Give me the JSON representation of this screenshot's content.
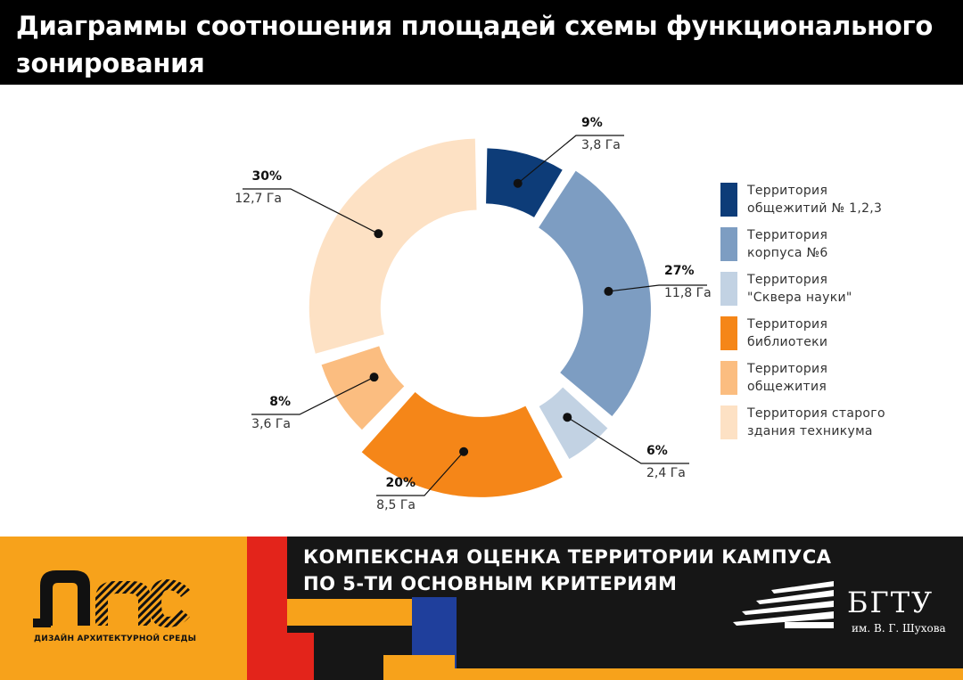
{
  "header": {
    "title": "Диаграммы соотношения площадей схемы функционального зонирования"
  },
  "chart_data": {
    "type": "pie",
    "title": "",
    "series": [
      {
        "name": "Территория общежитий № 1,2,3",
        "percent_label": "9%",
        "area_label": "3,8 Га",
        "value": 3.8,
        "color": "#0d3c78"
      },
      {
        "name": "Территория корпуса №6",
        "percent_label": "27%",
        "area_label": "11,8 Га",
        "value": 11.8,
        "color": "#7d9dc2"
      },
      {
        "name": "Территория \"Сквера науки\"",
        "percent_label": "6%",
        "area_label": "2,4 Га",
        "value": 2.4,
        "color": "#c2d2e3"
      },
      {
        "name": "Территория библиотеки",
        "percent_label": "20%",
        "area_label": "8,5 Га",
        "value": 8.5,
        "color": "#f58618"
      },
      {
        "name": "Территория общежития",
        "percent_label": "8%",
        "area_label": "3,6 Га",
        "value": 3.6,
        "color": "#fbbd80"
      },
      {
        "name": "Территория старого здания техникума",
        "percent_label": "30%",
        "area_label": "12,7 Га",
        "value": 12.7,
        "color": "#fde1c4"
      }
    ]
  },
  "legend": [
    {
      "line1": "Территория",
      "line2": "общежитий № 1,2,3",
      "color": "#0d3c78"
    },
    {
      "line1": "Территория",
      "line2": "корпуса №6",
      "color": "#7d9dc2"
    },
    {
      "line1": "Территория",
      "line2": "\"Сквера науки\"",
      "color": "#c2d2e3"
    },
    {
      "line1": "Территория",
      "line2": "библиотеки",
      "color": "#f58618"
    },
    {
      "line1": "Территория",
      "line2": "общежития",
      "color": "#fbbd80"
    },
    {
      "line1": "Территория старого",
      "line2": "здания техникума",
      "color": "#fde1c4"
    }
  ],
  "footer": {
    "slogan_line1": "КОМПЕКСНАЯ ОЦЕНКА ТЕРРИТОРИИ КАМПУСА",
    "slogan_line2": "ПО 5-ТИ ОСНОВНЫМ КРИТЕРИЯМ",
    "left_logo_text": "ДИЗАЙН АРХИТЕКТУРНОЙ СРЕДЫ",
    "right_logo_name": "БГТУ",
    "right_logo_sub": "им. В. Г. Шухова"
  },
  "colors": {
    "header_bg": "#000000",
    "footer_orange": "#f7a21b",
    "footer_red": "#e3241b",
    "footer_blue": "#1f3f9c"
  }
}
